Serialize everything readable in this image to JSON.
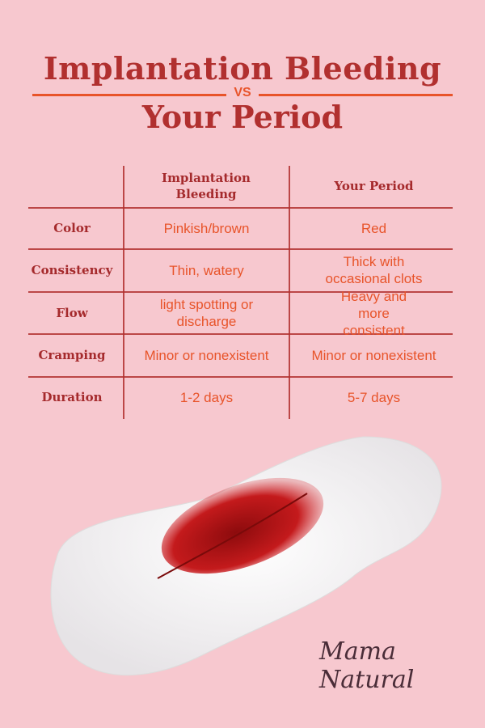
{
  "title": {
    "line1": "Implantation Bleeding",
    "vs": "VS",
    "line2": "Your Period"
  },
  "colors": {
    "background": "#f7c8cf",
    "title": "#b1302f",
    "accent": "#e8542a"
  },
  "table": {
    "headers": [
      "Implantation Bleeding",
      "Your Period"
    ],
    "rows": [
      {
        "label": "Color",
        "implantation": "Pinkish/brown",
        "period": "Red"
      },
      {
        "label": "Consistency",
        "implantation": "Thin, watery",
        "period": "Thick with occasional clots"
      },
      {
        "label": "Flow",
        "implantation": "light spotting or discharge",
        "period": "Heavy and more consistent"
      },
      {
        "label": "Cramping",
        "implantation": "Minor or nonexistent",
        "period": "Minor or nonexistent"
      },
      {
        "label": "Duration",
        "implantation": "1-2 days",
        "period": "5-7 days"
      }
    ]
  },
  "logo": "Mama Natural"
}
